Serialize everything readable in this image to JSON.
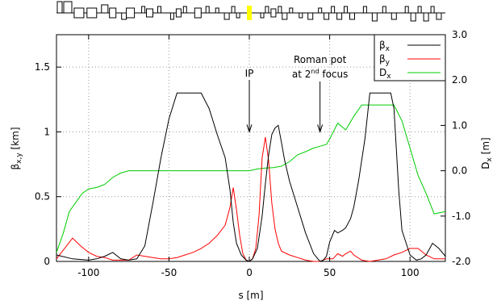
{
  "chart_data": {
    "type": "line",
    "title": "",
    "xlabel": "s [m]",
    "ylabel_left": "β_x,y [km]",
    "ylabel_right": "D_x [m]",
    "xlim": [
      -120,
      122
    ],
    "ylim_left": [
      0,
      1.75
    ],
    "ylim_right": [
      -2.0,
      3.0
    ],
    "grid": true,
    "legend_position": "top-right",
    "x_ticks": [
      -100,
      -50,
      0,
      50,
      100
    ],
    "x_tick_labels": [
      "-100",
      "-50",
      "0",
      "50",
      "100"
    ],
    "y_left_ticks": [
      0,
      0.5,
      1,
      1.5
    ],
    "y_left_tick_labels": [
      "0",
      "0.5",
      "1",
      "1.5"
    ],
    "y_right_ticks": [
      -2.0,
      -1.0,
      0.0,
      1.0,
      2.0,
      3.0
    ],
    "y_right_tick_labels": [
      "-2.0",
      "-1.0",
      "0.0",
      "1.0",
      "2.0",
      "3.0"
    ],
    "annotations": [
      {
        "text": "IP",
        "x": 0,
        "arrow_to_y": 1.0
      },
      {
        "text_line1": "Roman pot",
        "text_line2_pre": "at 2",
        "text_line2_sup": "nd",
        "text_line2_post": " focus",
        "x": 44,
        "arrow_to_y": 1.0
      }
    ],
    "series": [
      {
        "name_base": "β",
        "name_sub": "x",
        "axis": "left",
        "color": "#000000",
        "x": [
          -120,
          -110,
          -100,
          -95,
          -90,
          -85,
          -80,
          -75,
          -70,
          -65,
          -60,
          -55,
          -50,
          -45,
          -40,
          -35,
          -30,
          -25,
          -20,
          -15,
          -12,
          -10,
          -8,
          -5,
          -2,
          0,
          2,
          5,
          8,
          10,
          12,
          14,
          16,
          18,
          20,
          22,
          25,
          30,
          35,
          40,
          44,
          46,
          48,
          50,
          53,
          55,
          58,
          60,
          63,
          65,
          68,
          72,
          75,
          80,
          85,
          88,
          90,
          93,
          95,
          100,
          104,
          107,
          110,
          114,
          118,
          122
        ],
        "y": [
          0.05,
          0.02,
          0.01,
          0.02,
          0.04,
          0.07,
          0.02,
          0.01,
          0.02,
          0.12,
          0.45,
          0.8,
          1.1,
          1.3,
          1.3,
          1.3,
          1.3,
          1.18,
          0.98,
          0.8,
          0.55,
          0.3,
          0.14,
          0.05,
          0.01,
          0.0,
          0.02,
          0.1,
          0.35,
          0.6,
          0.82,
          0.98,
          1.03,
          1.05,
          0.92,
          0.78,
          0.62,
          0.42,
          0.22,
          0.06,
          0.0,
          0.01,
          0.04,
          0.15,
          0.24,
          0.22,
          0.24,
          0.26,
          0.33,
          0.42,
          0.62,
          0.95,
          1.3,
          1.3,
          1.3,
          1.3,
          1.18,
          0.55,
          0.24,
          0.05,
          0.01,
          0.02,
          0.05,
          0.14,
          0.1,
          0.04
        ]
      },
      {
        "name_base": "β",
        "name_sub": "y",
        "axis": "left",
        "color": "#ff0000",
        "x": [
          -120,
          -115,
          -110,
          -105,
          -100,
          -95,
          -90,
          -85,
          -80,
          -75,
          -70,
          -65,
          -60,
          -55,
          -50,
          -45,
          -40,
          -35,
          -30,
          -25,
          -20,
          -15,
          -12,
          -10,
          -8,
          -6,
          -4,
          -2,
          0,
          2,
          4,
          6,
          8,
          10,
          12,
          14,
          16,
          18,
          20,
          25,
          30,
          35,
          40,
          44,
          48,
          52,
          55,
          58,
          60,
          63,
          65,
          70,
          75,
          80,
          85,
          90,
          95,
          100,
          105,
          110,
          115,
          122
        ],
        "y": [
          0.02,
          0.1,
          0.18,
          0.12,
          0.07,
          0.04,
          0.03,
          0.01,
          0.01,
          0.01,
          0.05,
          0.04,
          0.03,
          0.02,
          0.02,
          0.03,
          0.05,
          0.07,
          0.1,
          0.14,
          0.2,
          0.28,
          0.42,
          0.57,
          0.4,
          0.2,
          0.06,
          0.01,
          0.0,
          0.02,
          0.1,
          0.35,
          0.8,
          0.96,
          0.78,
          0.45,
          0.25,
          0.14,
          0.08,
          0.05,
          0.03,
          0.01,
          0.0,
          0.0,
          0.02,
          0.02,
          0.06,
          0.04,
          0.06,
          0.08,
          0.05,
          0.01,
          0.0,
          0.01,
          0.02,
          0.05,
          0.07,
          0.1,
          0.1,
          0.05,
          0.02,
          0.02
        ]
      },
      {
        "name_base": "D",
        "name_sub": "x",
        "axis": "right",
        "color": "#00cc00",
        "x": [
          -120,
          -116,
          -112,
          -108,
          -104,
          -100,
          -95,
          -90,
          -85,
          -80,
          -75,
          -70,
          -65,
          -60,
          -55,
          -50,
          -45,
          -40,
          -35,
          -30,
          -25,
          -20,
          -10,
          0,
          5,
          10,
          15,
          20,
          25,
          30,
          35,
          40,
          45,
          48,
          50,
          55,
          60,
          65,
          70,
          75,
          80,
          85,
          90,
          95,
          100,
          105,
          110,
          115,
          122
        ],
        "y": [
          -1.8,
          -1.4,
          -0.9,
          -0.7,
          -0.5,
          -0.4,
          -0.37,
          -0.3,
          -0.15,
          -0.05,
          0.0,
          0.0,
          0.0,
          0.0,
          0.0,
          0.0,
          0.0,
          0.0,
          0.0,
          0.0,
          0.0,
          0.0,
          0.0,
          0.0,
          0.04,
          0.06,
          0.07,
          0.1,
          0.2,
          0.35,
          0.42,
          0.5,
          0.55,
          0.58,
          0.7,
          1.05,
          0.9,
          1.2,
          1.45,
          1.45,
          1.45,
          1.45,
          1.45,
          1.1,
          0.5,
          -0.1,
          -0.5,
          -0.95,
          -0.9
        ]
      }
    ]
  },
  "beamline": {
    "ip_marker_color": "#ffff00",
    "element_color": "#000000"
  }
}
